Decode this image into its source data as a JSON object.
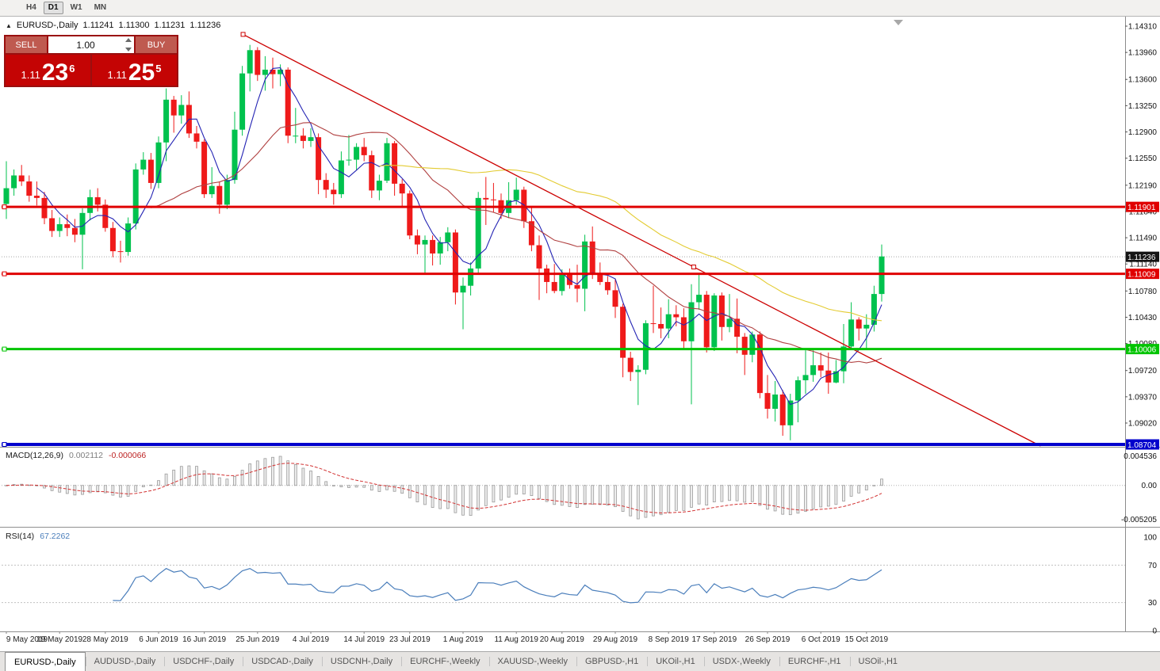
{
  "toolbar": {
    "timeframes": [
      {
        "label": "H4",
        "active": false
      },
      {
        "label": "D1",
        "active": true
      },
      {
        "label": "W1",
        "active": false
      },
      {
        "label": "MN",
        "active": false
      }
    ]
  },
  "icons": {
    "panel_toggle": "▲"
  },
  "chart_header": {
    "symbol": "EURUSD-,Daily",
    "open": "1.11241",
    "high": "1.11300",
    "low": "1.11231",
    "close": "1.11236"
  },
  "trade_panel": {
    "sell_label": "SELL",
    "buy_label": "BUY",
    "volume": "1.00",
    "sell_price_small": "1.11",
    "sell_price_big": "23",
    "sell_price_sup": "6",
    "buy_price_small": "1.11",
    "buy_price_big": "25",
    "buy_price_sup": "5"
  },
  "price_axis": {
    "ticks": [
      "1.14310",
      "1.13960",
      "1.13600",
      "1.13250",
      "1.12900",
      "1.12550",
      "1.12190",
      "1.11840",
      "1.11490",
      "1.11140",
      "1.10780",
      "1.10430",
      "1.10080",
      "1.09720",
      "1.09370",
      "1.09020"
    ]
  },
  "current_price": {
    "label": "1.11236",
    "price": 1.11236,
    "badge_color": "#141414"
  },
  "chart_objects": {
    "levels": [
      {
        "label": "1.11901",
        "price": 1.11901,
        "color": "#e00000",
        "thickness": 3
      },
      {
        "label": "1.11009",
        "price": 1.11009,
        "color": "#e00000",
        "thickness": 3
      },
      {
        "label": "1.10006",
        "price": 1.10006,
        "color": "#00c400",
        "thickness": 3
      },
      {
        "label": "1.08704",
        "price": 1.08704,
        "color": "#0000cc",
        "thickness": 4
      }
    ],
    "trendline": {
      "color": "#cc0000",
      "from_index": 31.1,
      "from_price": 1.142,
      "mid_index": 90.3,
      "mid_price": 1.111,
      "to_index": 149.5,
      "to_price": 1.08
    }
  },
  "chart_data": {
    "type": "candlestick",
    "symbol": "EURUSD",
    "timeframe": "Daily",
    "up_color": "#00c24e",
    "down_color": "#ef1a1a",
    "y_range": [
      1.087,
      1.1431
    ],
    "moving_averages": [
      {
        "period": 5,
        "color": "#2424b4"
      },
      {
        "period": 20,
        "color": "#b04040"
      },
      {
        "period": 50,
        "color": "#e3cb31"
      }
    ],
    "candles": [
      [
        1.1194,
        1.1251,
        1.1174,
        1.1215
      ],
      [
        1.1215,
        1.124,
        1.1205,
        1.1232
      ],
      [
        1.1232,
        1.1246,
        1.1218,
        1.1224
      ],
      [
        1.1224,
        1.1232,
        1.1197,
        1.1205
      ],
      [
        1.1205,
        1.1224,
        1.1192,
        1.1202
      ],
      [
        1.1202,
        1.121,
        1.1167,
        1.1175
      ],
      [
        1.1175,
        1.1186,
        1.115,
        1.1158
      ],
      [
        1.1158,
        1.1176,
        1.115,
        1.1167
      ],
      [
        1.1167,
        1.118,
        1.1151,
        1.1162
      ],
      [
        1.1162,
        1.1174,
        1.1143,
        1.1153
      ],
      [
        1.1153,
        1.1188,
        1.1107,
        1.1182
      ],
      [
        1.1182,
        1.1213,
        1.1172,
        1.1203
      ],
      [
        1.1203,
        1.1215,
        1.1184,
        1.1193
      ],
      [
        1.1193,
        1.12,
        1.1157,
        1.1162
      ],
      [
        1.1162,
        1.117,
        1.1123,
        1.1131
      ],
      [
        1.1131,
        1.1145,
        1.1116,
        1.113
      ],
      [
        1.113,
        1.1176,
        1.1125,
        1.1168
      ],
      [
        1.1168,
        1.1248,
        1.116,
        1.124
      ],
      [
        1.124,
        1.1263,
        1.1233,
        1.1253
      ],
      [
        1.1253,
        1.1262,
        1.1214,
        1.1222
      ],
      [
        1.1222,
        1.1284,
        1.1215,
        1.1276
      ],
      [
        1.1276,
        1.1348,
        1.1251,
        1.1333
      ],
      [
        1.1333,
        1.1338,
        1.1289,
        1.1312
      ],
      [
        1.1312,
        1.1339,
        1.1301,
        1.1326
      ],
      [
        1.1326,
        1.1344,
        1.1282,
        1.1288
      ],
      [
        1.1288,
        1.1298,
        1.1268,
        1.1277
      ],
      [
        1.1277,
        1.128,
        1.1202,
        1.1207
      ],
      [
        1.1207,
        1.1243,
        1.1202,
        1.1218
      ],
      [
        1.1218,
        1.1224,
        1.1181,
        1.1193
      ],
      [
        1.1193,
        1.1233,
        1.1187,
        1.1226
      ],
      [
        1.1226,
        1.1317,
        1.1221,
        1.1293
      ],
      [
        1.1293,
        1.1378,
        1.1285,
        1.1368
      ],
      [
        1.1368,
        1.1406,
        1.1344,
        1.1399
      ],
      [
        1.1399,
        1.1403,
        1.1358,
        1.1366
      ],
      [
        1.1366,
        1.1391,
        1.1345,
        1.1373
      ],
      [
        1.1373,
        1.1389,
        1.1348,
        1.1367
      ],
      [
        1.1367,
        1.138,
        1.1351,
        1.1373
      ],
      [
        1.1373,
        1.1376,
        1.1275,
        1.1285
      ],
      [
        1.1285,
        1.1322,
        1.1275,
        1.1285
      ],
      [
        1.1285,
        1.1295,
        1.1268,
        1.1278
      ],
      [
        1.1278,
        1.1295,
        1.127,
        1.1283
      ],
      [
        1.1283,
        1.1288,
        1.1207,
        1.1226
      ],
      [
        1.1226,
        1.1235,
        1.1202,
        1.1213
      ],
      [
        1.1213,
        1.1222,
        1.1193,
        1.1207
      ],
      [
        1.1207,
        1.1264,
        1.1202,
        1.1252
      ],
      [
        1.1252,
        1.1286,
        1.1245,
        1.1253
      ],
      [
        1.1253,
        1.1275,
        1.1239,
        1.127
      ],
      [
        1.127,
        1.1282,
        1.1251,
        1.1259
      ],
      [
        1.1259,
        1.1265,
        1.1202,
        1.1212
      ],
      [
        1.1212,
        1.1233,
        1.1199,
        1.1225
      ],
      [
        1.1225,
        1.1282,
        1.1222,
        1.1275
      ],
      [
        1.1275,
        1.1278,
        1.1205,
        1.1221
      ],
      [
        1.1221,
        1.1227,
        1.119,
        1.1208
      ],
      [
        1.1208,
        1.1212,
        1.1147,
        1.1152
      ],
      [
        1.1152,
        1.116,
        1.1127,
        1.114
      ],
      [
        1.114,
        1.1152,
        1.1101,
        1.1146
      ],
      [
        1.1146,
        1.1152,
        1.1112,
        1.1128
      ],
      [
        1.1128,
        1.115,
        1.1113,
        1.1143
      ],
      [
        1.1143,
        1.1163,
        1.1131,
        1.1156
      ],
      [
        1.1156,
        1.116,
        1.106,
        1.1076
      ],
      [
        1.1076,
        1.1096,
        1.1027,
        1.1085
      ],
      [
        1.1085,
        1.1116,
        1.1072,
        1.1108
      ],
      [
        1.1108,
        1.121,
        1.1101,
        1.1202
      ],
      [
        1.1202,
        1.123,
        1.1166,
        1.12
      ],
      [
        1.12,
        1.1222,
        1.1183,
        1.1199
      ],
      [
        1.1199,
        1.1208,
        1.1174,
        1.1182
      ],
      [
        1.1182,
        1.1223,
        1.1175,
        1.1199
      ],
      [
        1.1199,
        1.1229,
        1.1193,
        1.1213
      ],
      [
        1.1213,
        1.1217,
        1.1162,
        1.1171
      ],
      [
        1.1171,
        1.119,
        1.1131,
        1.1139
      ],
      [
        1.1139,
        1.1152,
        1.1066,
        1.1108
      ],
      [
        1.1108,
        1.1113,
        1.1075,
        1.109
      ],
      [
        1.109,
        1.1114,
        1.1075,
        1.1078
      ],
      [
        1.1078,
        1.1107,
        1.1072,
        1.11
      ],
      [
        1.11,
        1.1108,
        1.1081,
        1.1086
      ],
      [
        1.1086,
        1.1113,
        1.1063,
        1.1081
      ],
      [
        1.1081,
        1.1153,
        1.1051,
        1.1144
      ],
      [
        1.1144,
        1.1164,
        1.1094,
        1.1101
      ],
      [
        1.1101,
        1.1116,
        1.1086,
        1.109
      ],
      [
        1.109,
        1.1098,
        1.1073,
        1.1079
      ],
      [
        1.1079,
        1.1094,
        1.1042,
        1.1057
      ],
      [
        1.1057,
        1.1061,
        1.0963,
        1.0989
      ],
      [
        1.0989,
        1.0997,
        1.0958,
        1.097
      ],
      [
        1.097,
        1.0979,
        1.0926,
        1.0973
      ],
      [
        1.0973,
        1.1039,
        1.0967,
        1.1035
      ],
      [
        1.1035,
        1.1085,
        1.1022,
        1.1034
      ],
      [
        1.1034,
        1.1056,
        1.1015,
        1.1028
      ],
      [
        1.1028,
        1.1067,
        1.1015,
        1.1047
      ],
      [
        1.1047,
        1.1059,
        1.1031,
        1.1043
      ],
      [
        1.1043,
        1.1055,
        1.1,
        1.1011
      ],
      [
        1.1011,
        1.1087,
        1.0927,
        1.1063
      ],
      [
        1.1063,
        1.11,
        1.1053,
        1.1073
      ],
      [
        1.1073,
        1.1078,
        1.0996,
        1.1003
      ],
      [
        1.1003,
        1.1075,
        1.0998,
        1.1072
      ],
      [
        1.1072,
        1.1076,
        1.1012,
        1.103
      ],
      [
        1.103,
        1.1074,
        1.1023,
        1.1041
      ],
      [
        1.1041,
        1.1068,
        1.0995,
        1.1017
      ],
      [
        1.1017,
        1.1022,
        1.0966,
        1.0993
      ],
      [
        1.0993,
        1.1024,
        1.0983,
        1.102
      ],
      [
        1.102,
        1.1024,
        1.0935,
        1.0942
      ],
      [
        1.0942,
        1.0966,
        1.0908,
        1.0921
      ],
      [
        1.0921,
        1.0958,
        1.0904,
        1.094
      ],
      [
        1.094,
        1.0946,
        1.0885,
        1.0899
      ],
      [
        1.0899,
        1.0941,
        1.0879,
        1.0932
      ],
      [
        1.0932,
        1.0964,
        1.0903,
        1.0959
      ],
      [
        1.0959,
        1.0999,
        1.0941,
        1.0966
      ],
      [
        1.0966,
        1.0999,
        1.0957,
        1.0979
      ],
      [
        1.0979,
        1.0996,
        1.0963,
        1.0972
      ],
      [
        1.0972,
        1.0996,
        1.0941,
        1.0956
      ],
      [
        1.0956,
        1.0986,
        1.0955,
        1.0971
      ],
      [
        1.0971,
        1.1034,
        1.0955,
        1.1004
      ],
      [
        1.1004,
        1.1063,
        1.1002,
        1.104
      ],
      [
        1.104,
        1.1043,
        1.1012,
        1.1028
      ],
      [
        1.1028,
        1.1047,
        1.1001,
        1.1033
      ],
      [
        1.1033,
        1.1085,
        1.1024,
        1.1074
      ],
      [
        1.1074,
        1.114,
        1.1064,
        1.1124
      ]
    ],
    "x_labels": [
      {
        "text": "9 May 2019",
        "i": 0
      },
      {
        "text": "19 May 2019",
        "i": 7
      },
      {
        "text": "28 May 2019",
        "i": 13
      },
      {
        "text": "6 Jun 2019",
        "i": 20
      },
      {
        "text": "16 Jun 2019",
        "i": 26
      },
      {
        "text": "25 Jun 2019",
        "i": 33
      },
      {
        "text": "4 Jul 2019",
        "i": 40
      },
      {
        "text": "14 Jul 2019",
        "i": 47
      },
      {
        "text": "23 Jul 2019",
        "i": 53
      },
      {
        "text": "1 Aug 2019",
        "i": 60
      },
      {
        "text": "11 Aug 2019",
        "i": 67
      },
      {
        "text": "20 Aug 2019",
        "i": 73
      },
      {
        "text": "29 Aug 2019",
        "i": 80
      },
      {
        "text": "8 Sep 2019",
        "i": 87
      },
      {
        "text": "17 Sep 2019",
        "i": 93
      },
      {
        "text": "26 Sep 2019",
        "i": 100
      },
      {
        "text": "6 Oct 2019",
        "i": 107
      },
      {
        "text": "15 Oct 2019",
        "i": 113
      }
    ]
  },
  "macd": {
    "label": "MACD(12,26,9)",
    "value_main": "0.002112",
    "value_signal": "-0.000066",
    "fast": 12,
    "slow": 26,
    "signal": 9,
    "axis": [
      "0.004536",
      "0.00",
      "-0.005205"
    ],
    "histogram_fill": "#ededed",
    "histogram_stroke": "#9b9b9b",
    "signal_color": "#d23333"
  },
  "rsi": {
    "label": "RSI(14)",
    "value": "67.2262",
    "period": 14,
    "axis": [
      "100",
      "70",
      "30",
      "0"
    ],
    "levels": [
      70,
      30
    ],
    "line_color": "#4a7ebb"
  },
  "tabs": [
    {
      "label": "EURUSD-,Daily",
      "active": true
    },
    {
      "label": "AUDUSD-,Daily",
      "active": false
    },
    {
      "label": "USDCHF-,Daily",
      "active": false
    },
    {
      "label": "USDCAD-,Daily",
      "active": false
    },
    {
      "label": "USDCNH-,Daily",
      "active": false
    },
    {
      "label": "EURCHF-,Weekly",
      "active": false
    },
    {
      "label": "XAUUSD-,Weekly",
      "active": false
    },
    {
      "label": "GBPUSD-,H1",
      "active": false
    },
    {
      "label": "UKOil-,H1",
      "active": false
    },
    {
      "label": "USDX-,Weekly",
      "active": false
    },
    {
      "label": "EURCHF-,H1",
      "active": false
    },
    {
      "label": "USOil-,H1",
      "active": false
    }
  ]
}
